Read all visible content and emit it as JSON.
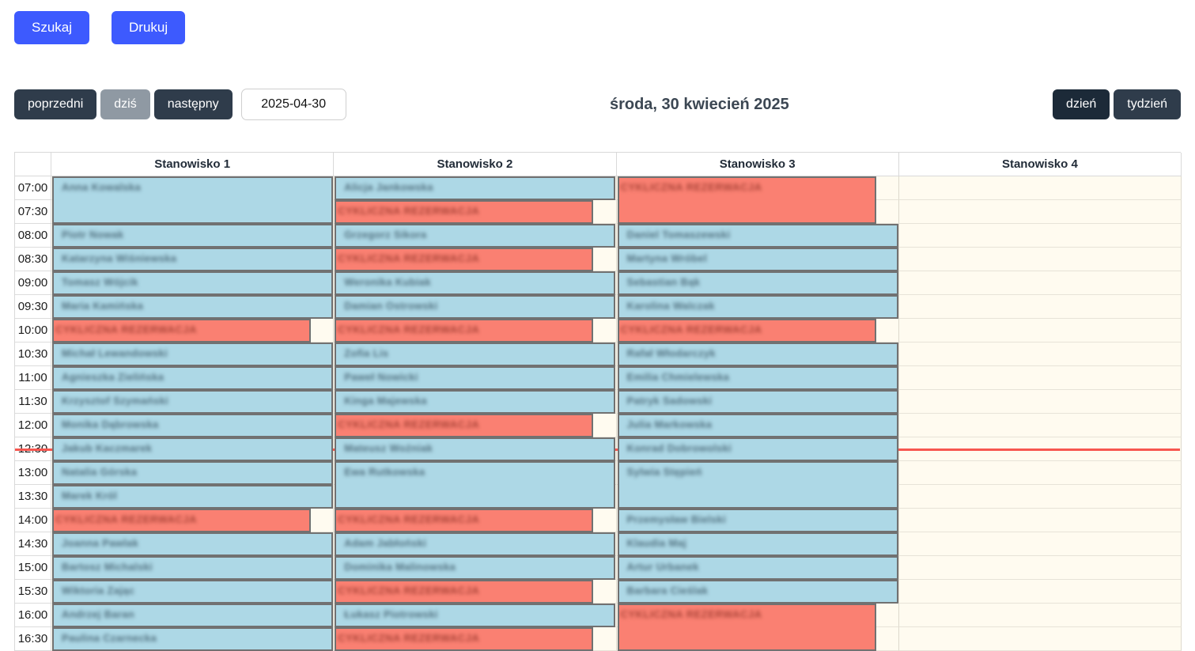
{
  "actions": {
    "search_label": "Szukaj",
    "print_label": "Drukuj"
  },
  "toolbar": {
    "prev_label": "poprzedni",
    "today_label": "dziś",
    "next_label": "następny",
    "date_value": "2025-04-30",
    "title": "środa, 30 kwiecień 2025",
    "day_label": "dzień",
    "week_label": "tydzień"
  },
  "colors": {
    "primary_button": "#3D5AFE",
    "dark_button": "#2F3C4B",
    "active_button": "#1C2A38",
    "muted_button": "#8F99A3",
    "event_standard": "#ADD8E6",
    "event_recurring": "#FA8072",
    "now_line": "#F7564F"
  },
  "calendar": {
    "start_time": "07:00",
    "slot_minutes": 30,
    "now_indicator_time": "12:45",
    "time_labels": [
      "07:00",
      "07:30",
      "08:00",
      "08:30",
      "09:00",
      "09:30",
      "10:00",
      "10:30",
      "11:00",
      "11:30",
      "12:00",
      "12:30",
      "13:00",
      "13:30",
      "14:00",
      "14:30",
      "15:00",
      "15:30",
      "16:00",
      "16:30"
    ],
    "columns": [
      {
        "header": "Stanowisko 1",
        "events": [
          {
            "start": "07:00",
            "end": "08:00",
            "title": "Anna Kowalska",
            "kind": "standard"
          },
          {
            "start": "08:00",
            "end": "08:30",
            "title": "Piotr Nowak",
            "kind": "standard"
          },
          {
            "start": "08:30",
            "end": "09:00",
            "title": "Katarzyna Wiśniewska",
            "kind": "standard"
          },
          {
            "start": "09:00",
            "end": "09:30",
            "title": "Tomasz Wójcik",
            "kind": "standard"
          },
          {
            "start": "09:30",
            "end": "10:00",
            "title": "Maria Kamińska",
            "kind": "standard"
          },
          {
            "start": "10:00",
            "end": "10:30",
            "title": "CYKLICZNA REZERWACJA",
            "kind": "recurring"
          },
          {
            "start": "10:30",
            "end": "11:00",
            "title": "Michał Lewandowski",
            "kind": "standard"
          },
          {
            "start": "11:00",
            "end": "11:30",
            "title": "Agnieszka Zielińska",
            "kind": "standard"
          },
          {
            "start": "11:30",
            "end": "12:00",
            "title": "Krzysztof Szymański",
            "kind": "standard"
          },
          {
            "start": "12:00",
            "end": "12:30",
            "title": "Monika Dąbrowska",
            "kind": "standard"
          },
          {
            "start": "12:30",
            "end": "13:00",
            "title": "Jakub Kaczmarek",
            "kind": "standard"
          },
          {
            "start": "13:00",
            "end": "13:30",
            "title": "Natalia Górska",
            "kind": "standard"
          },
          {
            "start": "13:30",
            "end": "14:00",
            "title": "Marek Król",
            "kind": "standard"
          },
          {
            "start": "14:00",
            "end": "14:30",
            "title": "CYKLICZNA REZERWACJA",
            "kind": "recurring"
          },
          {
            "start": "14:30",
            "end": "15:00",
            "title": "Joanna Pawlak",
            "kind": "standard"
          },
          {
            "start": "15:00",
            "end": "15:30",
            "title": "Bartosz Michalski",
            "kind": "standard"
          },
          {
            "start": "15:30",
            "end": "16:00",
            "title": "Wiktoria Zając",
            "kind": "standard"
          },
          {
            "start": "16:00",
            "end": "16:30",
            "title": "Andrzej Baran",
            "kind": "standard"
          },
          {
            "start": "16:30",
            "end": "17:00",
            "title": "Paulina Czarnecka",
            "kind": "standard"
          }
        ]
      },
      {
        "header": "Stanowisko 2",
        "events": [
          {
            "start": "07:00",
            "end": "07:30",
            "title": "Alicja Jankowska",
            "kind": "standard"
          },
          {
            "start": "07:30",
            "end": "08:00",
            "title": "CYKLICZNA REZERWACJA",
            "kind": "recurring"
          },
          {
            "start": "08:00",
            "end": "08:30",
            "title": "Grzegorz Sikora",
            "kind": "standard"
          },
          {
            "start": "08:30",
            "end": "09:00",
            "title": "CYKLICZNA REZERWACJA",
            "kind": "recurring"
          },
          {
            "start": "09:00",
            "end": "09:30",
            "title": "Weronika Kubiak",
            "kind": "standard"
          },
          {
            "start": "09:30",
            "end": "10:00",
            "title": "Damian Ostrowski",
            "kind": "standard"
          },
          {
            "start": "10:00",
            "end": "10:30",
            "title": "CYKLICZNA REZERWACJA",
            "kind": "recurring"
          },
          {
            "start": "10:30",
            "end": "11:00",
            "title": "Zofia Lis",
            "kind": "standard"
          },
          {
            "start": "11:00",
            "end": "11:30",
            "title": "Paweł Nowicki",
            "kind": "standard"
          },
          {
            "start": "11:30",
            "end": "12:00",
            "title": "Kinga Majewska",
            "kind": "standard"
          },
          {
            "start": "12:00",
            "end": "12:30",
            "title": "CYKLICZNA REZERWACJA",
            "kind": "recurring"
          },
          {
            "start": "12:30",
            "end": "13:00",
            "title": "Mateusz Woźniak",
            "kind": "standard"
          },
          {
            "start": "13:00",
            "end": "14:00",
            "title": "Ewa Rutkowska",
            "kind": "standard"
          },
          {
            "start": "14:00",
            "end": "14:30",
            "title": "CYKLICZNA REZERWACJA",
            "kind": "recurring"
          },
          {
            "start": "14:30",
            "end": "15:00",
            "title": "Adam Jabłoński",
            "kind": "standard"
          },
          {
            "start": "15:00",
            "end": "15:30",
            "title": "Dominika Malinowska",
            "kind": "standard"
          },
          {
            "start": "15:30",
            "end": "16:00",
            "title": "CYKLICZNA REZERWACJA",
            "kind": "recurring"
          },
          {
            "start": "16:00",
            "end": "16:30",
            "title": "Łukasz Piotrowski",
            "kind": "standard"
          },
          {
            "start": "16:30",
            "end": "17:00",
            "title": "CYKLICZNA REZERWACJA",
            "kind": "recurring"
          }
        ]
      },
      {
        "header": "Stanowisko 3",
        "events": [
          {
            "start": "07:00",
            "end": "08:00",
            "title": "CYKLICZNA REZERWACJA",
            "kind": "recurring"
          },
          {
            "start": "08:00",
            "end": "08:30",
            "title": "Daniel Tomaszewski",
            "kind": "standard"
          },
          {
            "start": "08:30",
            "end": "09:00",
            "title": "Martyna Wróbel",
            "kind": "standard"
          },
          {
            "start": "09:00",
            "end": "09:30",
            "title": "Sebastian Bąk",
            "kind": "standard"
          },
          {
            "start": "09:30",
            "end": "10:00",
            "title": "Karolina Walczak",
            "kind": "standard"
          },
          {
            "start": "10:00",
            "end": "10:30",
            "title": "CYKLICZNA REZERWACJA",
            "kind": "recurring"
          },
          {
            "start": "10:30",
            "end": "11:00",
            "title": "Rafał Włodarczyk",
            "kind": "standard"
          },
          {
            "start": "11:00",
            "end": "11:30",
            "title": "Emilia Chmielewska",
            "kind": "standard"
          },
          {
            "start": "11:30",
            "end": "12:00",
            "title": "Patryk Sadowski",
            "kind": "standard"
          },
          {
            "start": "12:00",
            "end": "12:30",
            "title": "Julia Markowska",
            "kind": "standard"
          },
          {
            "start": "12:30",
            "end": "13:00",
            "title": "Konrad Dobrowolski",
            "kind": "standard"
          },
          {
            "start": "13:00",
            "end": "14:00",
            "title": "Sylwia Stępień",
            "kind": "standard"
          },
          {
            "start": "14:00",
            "end": "14:30",
            "title": "Przemysław Bielski",
            "kind": "standard"
          },
          {
            "start": "14:30",
            "end": "15:00",
            "title": "Klaudia Maj",
            "kind": "standard"
          },
          {
            "start": "15:00",
            "end": "15:30",
            "title": "Artur Urbanek",
            "kind": "standard"
          },
          {
            "start": "15:30",
            "end": "16:00",
            "title": "Barbara Cieślak",
            "kind": "standard"
          },
          {
            "start": "16:00",
            "end": "17:00",
            "title": "CYKLICZNA REZERWACJA",
            "kind": "recurring"
          }
        ]
      },
      {
        "header": "Stanowisko 4",
        "events": []
      }
    ]
  }
}
